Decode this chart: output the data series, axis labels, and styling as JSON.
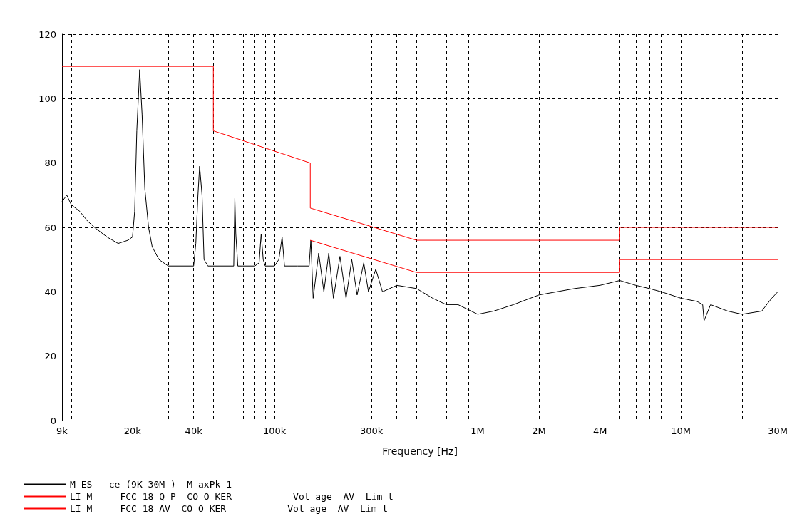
{
  "chart_data": {
    "type": "line",
    "xlabel": "Frequency [Hz]",
    "log": "x",
    "grid": true,
    "legend": "bottom",
    "marker": "none",
    "xlim": [
      9000,
      30000000
    ],
    "ylim": [
      0,
      120
    ],
    "yticks": [
      0,
      20,
      40,
      60,
      80,
      100,
      120
    ],
    "xticks": [
      {
        "value": 9000,
        "label": "9k"
      },
      {
        "value": 10000,
        "label": null
      },
      {
        "value": 20000,
        "label": "20k"
      },
      {
        "value": 30000,
        "label": null
      },
      {
        "value": 40000,
        "label": "40k"
      },
      {
        "value": 50000,
        "label": null
      },
      {
        "value": 60000,
        "label": null
      },
      {
        "value": 70000,
        "label": null
      },
      {
        "value": 80000,
        "label": null
      },
      {
        "value": 90000,
        "label": null
      },
      {
        "value": 100000,
        "label": "100k"
      },
      {
        "value": 200000,
        "label": null
      },
      {
        "value": 300000,
        "label": "300k"
      },
      {
        "value": 400000,
        "label": null
      },
      {
        "value": 500000,
        "label": null
      },
      {
        "value": 600000,
        "label": null
      },
      {
        "value": 700000,
        "label": null
      },
      {
        "value": 800000,
        "label": null
      },
      {
        "value": 900000,
        "label": null
      },
      {
        "value": 1000000,
        "label": "1M"
      },
      {
        "value": 2000000,
        "label": "2M"
      },
      {
        "value": 3000000,
        "label": null
      },
      {
        "value": 4000000,
        "label": "4M"
      },
      {
        "value": 5000000,
        "label": null
      },
      {
        "value": 6000000,
        "label": null
      },
      {
        "value": 7000000,
        "label": null
      },
      {
        "value": 8000000,
        "label": null
      },
      {
        "value": 9000000,
        "label": null
      },
      {
        "value": 10000000,
        "label": "10M"
      },
      {
        "value": 20000000,
        "label": null
      },
      {
        "value": 30000000,
        "label": "30M"
      }
    ],
    "series": [
      {
        "name": "M ES   ce (9K-30M )  M axPk 1",
        "color": "#000000",
        "x": [
          9000,
          9500,
          10000,
          11000,
          12000,
          13000,
          15000,
          17000,
          19000,
          20000,
          20500,
          21000,
          21700,
          22300,
          23000,
          24000,
          25000,
          27000,
          30000,
          35000,
          40000,
          41000,
          42000,
          42800,
          44000,
          45000,
          47000,
          55000,
          63000,
          63800,
          64500,
          66000,
          70000,
          80000,
          84000,
          86000,
          88000,
          90000,
          100000,
          105000,
          109000,
          112000,
          130000,
          148000,
          151000,
          155000,
          165000,
          175000,
          185000,
          195000,
          210000,
          225000,
          240000,
          255000,
          275000,
          290000,
          315000,
          340000,
          400000,
          500000,
          600000,
          700000,
          800000,
          1000000,
          1200000,
          1500000,
          2000000,
          3000000,
          4000000,
          5000000,
          6000000,
          7000000,
          8000000,
          10000000,
          12000000,
          12800000,
          13000000,
          14000000,
          17000000,
          20000000,
          25000000,
          28000000,
          30000000
        ],
        "values": [
          68,
          70,
          67,
          65,
          62,
          60,
          57,
          55,
          56,
          57,
          65,
          90,
          109,
          95,
          72,
          60,
          54,
          50,
          48,
          48,
          48,
          55,
          70,
          79,
          70,
          50,
          48,
          48,
          48,
          69,
          58,
          48,
          48,
          48,
          49,
          58,
          50,
          48,
          48,
          50,
          57,
          48,
          48,
          48,
          56,
          38,
          52,
          40,
          52,
          38,
          51,
          38,
          50,
          39,
          49,
          40,
          47,
          40,
          42,
          41,
          38,
          36,
          36,
          33,
          34,
          36,
          39,
          41,
          42,
          43.5,
          42,
          41,
          40,
          38,
          37,
          36,
          31,
          36,
          34,
          33,
          34,
          38,
          40
        ]
      },
      {
        "name": "LI M     FCC 18 Q P  CO O KER           Vot age  AV  Lim t",
        "color": "#ff0000",
        "x": [
          9000,
          50000,
          50000,
          150000,
          150000,
          500000,
          5000000,
          5000000,
          30000000
        ],
        "values": [
          110,
          110,
          90,
          80,
          66,
          56,
          56,
          60,
          60
        ]
      },
      {
        "name": "LI M     FCC 18 AV  CO O KER           Vot age  AV  Lim t",
        "color": "#ff0000",
        "x": [
          150000,
          500000,
          5000000,
          5000000,
          30000000
        ],
        "values": [
          56,
          46,
          46,
          50,
          50
        ]
      }
    ]
  }
}
